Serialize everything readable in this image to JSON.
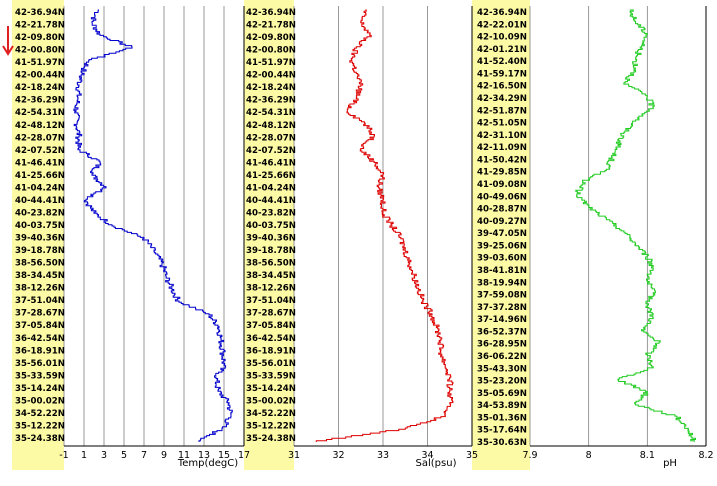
{
  "colors": {
    "label_band": "#fdfaa6",
    "grid": "#808080",
    "marker": "#e02020"
  },
  "marker": {
    "name": "down-arrow-icon"
  },
  "chart_data": [
    {
      "type": "line",
      "orientation": "vertical-profile",
      "xlabel": "Temp(degC)",
      "xlim": [
        -1,
        17
      ],
      "xticks": [
        "-1",
        "1",
        "3",
        "5",
        "7",
        "9",
        "11",
        "13",
        "15",
        "17"
      ],
      "grid": true,
      "color": "#0000cc",
      "latitude_labels": [
        "42-36.94N",
        "42-21.78N",
        "42-09.80N",
        "42-00.80N",
        "41-51.97N",
        "42-00.44N",
        "42-18.24N",
        "42-36.29N",
        "42-54.31N",
        "42-48.12N",
        "42-28.07N",
        "42-07.52N",
        "41-46.41N",
        "41-25.66N",
        "41-04.24N",
        "40-44.41N",
        "40-23.82N",
        "40-03.75N",
        "39-40.36N",
        "39-18.78N",
        "38-56.50N",
        "38-34.45N",
        "38-12.26N",
        "37-51.04N",
        "37-28.67N",
        "37-05.84N",
        "36-42.54N",
        "36-18.91N",
        "35-56.01N",
        "35-33.59N",
        "35-14.24N",
        "35-00.02N",
        "34-52.22N",
        "35-12.22N",
        "35-24.38N"
      ],
      "values": [
        2.5,
        1.8,
        2.6,
        5.8,
        1.5,
        0.8,
        0.5,
        0.4,
        0.2,
        0.3,
        0.5,
        0.4,
        2.6,
        1.8,
        3.2,
        1.2,
        2.0,
        3.8,
        7.0,
        8.0,
        8.8,
        9.2,
        9.8,
        10.5,
        13.5,
        14.5,
        14.7,
        14.9,
        15.0,
        14.2,
        14.4,
        15.5,
        15.7,
        14.8,
        12.5
      ]
    },
    {
      "type": "line",
      "orientation": "vertical-profile",
      "xlabel": "Sal(psu)",
      "xlim": [
        31,
        35
      ],
      "xticks": [
        "31",
        "32",
        "33",
        "34",
        "35"
      ],
      "grid": true,
      "color": "#dd0000",
      "latitude_labels": [
        "42-36.94N",
        "42-21.78N",
        "42-09.80N",
        "42-00.80N",
        "41-51.97N",
        "42-00.44N",
        "42-18.24N",
        "42-36.29N",
        "42-54.31N",
        "42-48.12N",
        "42-28.07N",
        "42-07.52N",
        "41-46.41N",
        "41-25.66N",
        "41-04.24N",
        "40-44.41N",
        "40-23.82N",
        "40-03.75N",
        "39-40.36N",
        "39-18.78N",
        "38-56.50N",
        "38-34.45N",
        "38-12.26N",
        "37-51.04N",
        "37-28.67N",
        "37-05.84N",
        "36-42.54N",
        "36-18.91N",
        "35-56.01N",
        "35-33.59N",
        "35-14.24N",
        "35-00.02N",
        "34-52.22N",
        "35-12.22N",
        "35-24.38N"
      ],
      "values": [
        32.6,
        32.5,
        32.7,
        32.4,
        32.3,
        32.4,
        32.5,
        32.4,
        32.2,
        32.6,
        32.8,
        32.5,
        32.8,
        33.0,
        32.9,
        33.0,
        33.0,
        33.2,
        33.4,
        33.5,
        33.6,
        33.7,
        33.8,
        33.9,
        34.1,
        34.2,
        34.3,
        34.3,
        34.4,
        34.5,
        34.5,
        34.5,
        34.4,
        33.5,
        31.5
      ]
    },
    {
      "type": "line",
      "orientation": "vertical-profile",
      "xlabel": "pH",
      "xlim": [
        7.9,
        8.2
      ],
      "xticks": [
        "7.9",
        "8",
        "8.1",
        "8.2"
      ],
      "grid": true,
      "color": "#22cc22",
      "latitude_labels": [
        "42-36.94N",
        "42-22.01N",
        "42-10.09N",
        "42-01.21N",
        "41-52.40N",
        "41-59.17N",
        "42-16.50N",
        "42-34.29N",
        "42-51.87N",
        "42-51.05N",
        "42-31.10N",
        "42-11.09N",
        "41-50.42N",
        "41-29.85N",
        "41-09.08N",
        "40-49.06N",
        "40-28.87N",
        "40-09.27N",
        "39-47.05N",
        "39-25.06N",
        "39-03.60N",
        "38-41.81N",
        "38-19.94N",
        "37-59.08N",
        "37-37.28N",
        "37-14.96N",
        "36-52.37N",
        "36-28.95N",
        "36-06.22N",
        "35-43.30N",
        "35-23.20N",
        "35-05.69N",
        "34-53.89N",
        "35-01.36N",
        "35-17.64N",
        "35-30.63N"
      ],
      "values": [
        8.07,
        8.08,
        8.1,
        8.09,
        8.08,
        8.08,
        8.06,
        8.1,
        8.11,
        8.08,
        8.06,
        8.05,
        8.04,
        8.03,
        7.99,
        7.98,
        8.0,
        8.03,
        8.06,
        8.08,
        8.1,
        8.11,
        8.1,
        8.11,
        8.1,
        8.11,
        8.09,
        8.12,
        8.1,
        8.11,
        8.05,
        8.1,
        8.08,
        8.15,
        8.17,
        8.18
      ]
    }
  ]
}
